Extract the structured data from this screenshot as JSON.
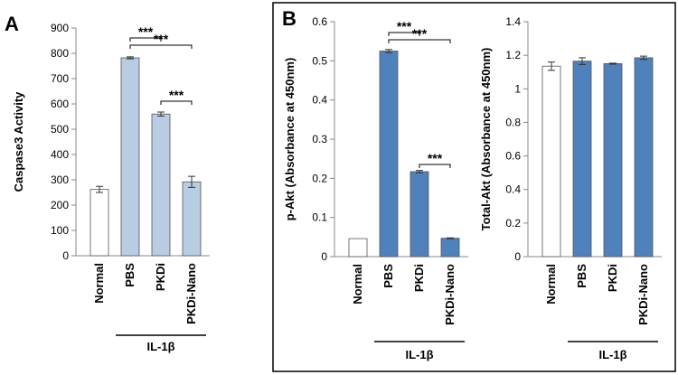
{
  "figure": {
    "panel_b_border_color": "#000000"
  },
  "chart_data": [
    {
      "type": "bar",
      "panel": "A",
      "title": "",
      "ylabel": "Caspase3 Activity",
      "xlabel": "",
      "ylim": [
        0,
        900
      ],
      "yticks": [
        0,
        100,
        200,
        300,
        400,
        500,
        600,
        700,
        800,
        900
      ],
      "categories": [
        "Normal",
        "PBS",
        "PKDi",
        "PKDi-Nano"
      ],
      "values": [
        262,
        782,
        560,
        292
      ],
      "errors": [
        12,
        4,
        8,
        22
      ],
      "colors": [
        "#ffffff",
        "#b8cce4",
        "#b8cce4",
        "#b8cce4"
      ],
      "group_label": "IL-1β",
      "group_categories": [
        "PBS",
        "PKDi",
        "PKDi-Nano"
      ],
      "significance": [
        {
          "from": "PBS",
          "to": "PKDi",
          "label": "***"
        },
        {
          "from": "PBS",
          "to": "PKDi-Nano",
          "label": "***"
        },
        {
          "from": "PKDi",
          "to": "PKDi-Nano",
          "label": "***"
        }
      ]
    },
    {
      "type": "bar",
      "panel": "B",
      "title": "",
      "ylabel": "p-Akt (Absorbance at 450nm)",
      "xlabel": "",
      "ylim": [
        0,
        0.6
      ],
      "yticks": [
        0,
        0.1,
        0.2,
        0.3,
        0.4,
        0.5,
        0.6
      ],
      "categories": [
        "Normal",
        "PBS",
        "PKDi",
        "PKDi-Nano"
      ],
      "values": [
        0.046,
        0.525,
        0.217,
        0.047
      ],
      "errors": [
        0,
        0.004,
        0.003,
        0.001
      ],
      "colors": [
        "#ffffff",
        "#4f81bd",
        "#4f81bd",
        "#4f81bd"
      ],
      "group_label": "IL-1β",
      "group_categories": [
        "PBS",
        "PKDi",
        "PKDi-Nano"
      ],
      "significance": [
        {
          "from": "PBS",
          "to": "PKDi",
          "label": "***"
        },
        {
          "from": "PBS",
          "to": "PKDi-Nano",
          "label": "***"
        },
        {
          "from": "PKDi",
          "to": "PKDi-Nano",
          "label": "***"
        }
      ]
    },
    {
      "type": "bar",
      "panel": "",
      "title": "",
      "ylabel": "Total-Akt (Absorbance at 450nm)",
      "xlabel": "",
      "ylim": [
        0,
        1.4
      ],
      "yticks": [
        0,
        0.2,
        0.4,
        0.6,
        0.8,
        1,
        1.2,
        1.4
      ],
      "categories": [
        "Normal",
        "PBS",
        "PKDi",
        "PKDi-Nano"
      ],
      "values": [
        1.135,
        1.165,
        1.15,
        1.185
      ],
      "errors": [
        0.025,
        0.02,
        0.003,
        0.01
      ],
      "colors": [
        "#ffffff",
        "#4f81bd",
        "#4f81bd",
        "#4f81bd"
      ],
      "group_label": "IL-1β",
      "group_categories": [
        "PBS",
        "PKDi",
        "PKDi-Nano"
      ],
      "significance": []
    }
  ]
}
